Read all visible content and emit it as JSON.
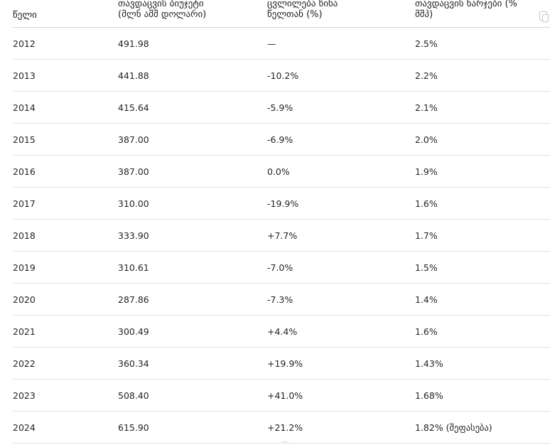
{
  "table": {
    "headers": [
      "წელი",
      "თავდაცვის ბიუჯეტი\n(მლნ აშშ დოლარი)",
      "ცვლილება წინა\nწელთან (%)",
      "თავდაცვის ხარჯები (%\nმშპ)"
    ],
    "rows": [
      {
        "year": "2012",
        "budget": "491.98",
        "change": "—",
        "gdp": "2.5%"
      },
      {
        "year": "2013",
        "budget": "441.88",
        "change": "-10.2%",
        "gdp": "2.2%"
      },
      {
        "year": "2014",
        "budget": "415.64",
        "change": "-5.9%",
        "gdp": "2.1%"
      },
      {
        "year": "2015",
        "budget": "387.00",
        "change": "-6.9%",
        "gdp": "2.0%"
      },
      {
        "year": "2016",
        "budget": "387.00",
        "change": "0.0%",
        "gdp": "1.9%"
      },
      {
        "year": "2017",
        "budget": "310.00",
        "change": "-19.9%",
        "gdp": "1.6%"
      },
      {
        "year": "2018",
        "budget": "333.90",
        "change": "+7.7%",
        "gdp": "1.7%"
      },
      {
        "year": "2019",
        "budget": "310.61",
        "change": "-7.0%",
        "gdp": "1.5%"
      },
      {
        "year": "2020",
        "budget": "287.86",
        "change": "-7.3%",
        "gdp": "1.4%"
      },
      {
        "year": "2021",
        "budget": "300.49",
        "change": "+4.4%",
        "gdp": "1.6%"
      },
      {
        "year": "2022",
        "budget": "360.34",
        "change": "+19.9%",
        "gdp": "1.43%"
      },
      {
        "year": "2023",
        "budget": "508.40",
        "change": "+41.0%",
        "gdp": "1.68%"
      },
      {
        "year": "2024",
        "budget": "615.90",
        "change": "+21.2%",
        "gdp": "1.82% (შეფასება)"
      }
    ]
  },
  "icons": {
    "copy": "copy-icon"
  }
}
